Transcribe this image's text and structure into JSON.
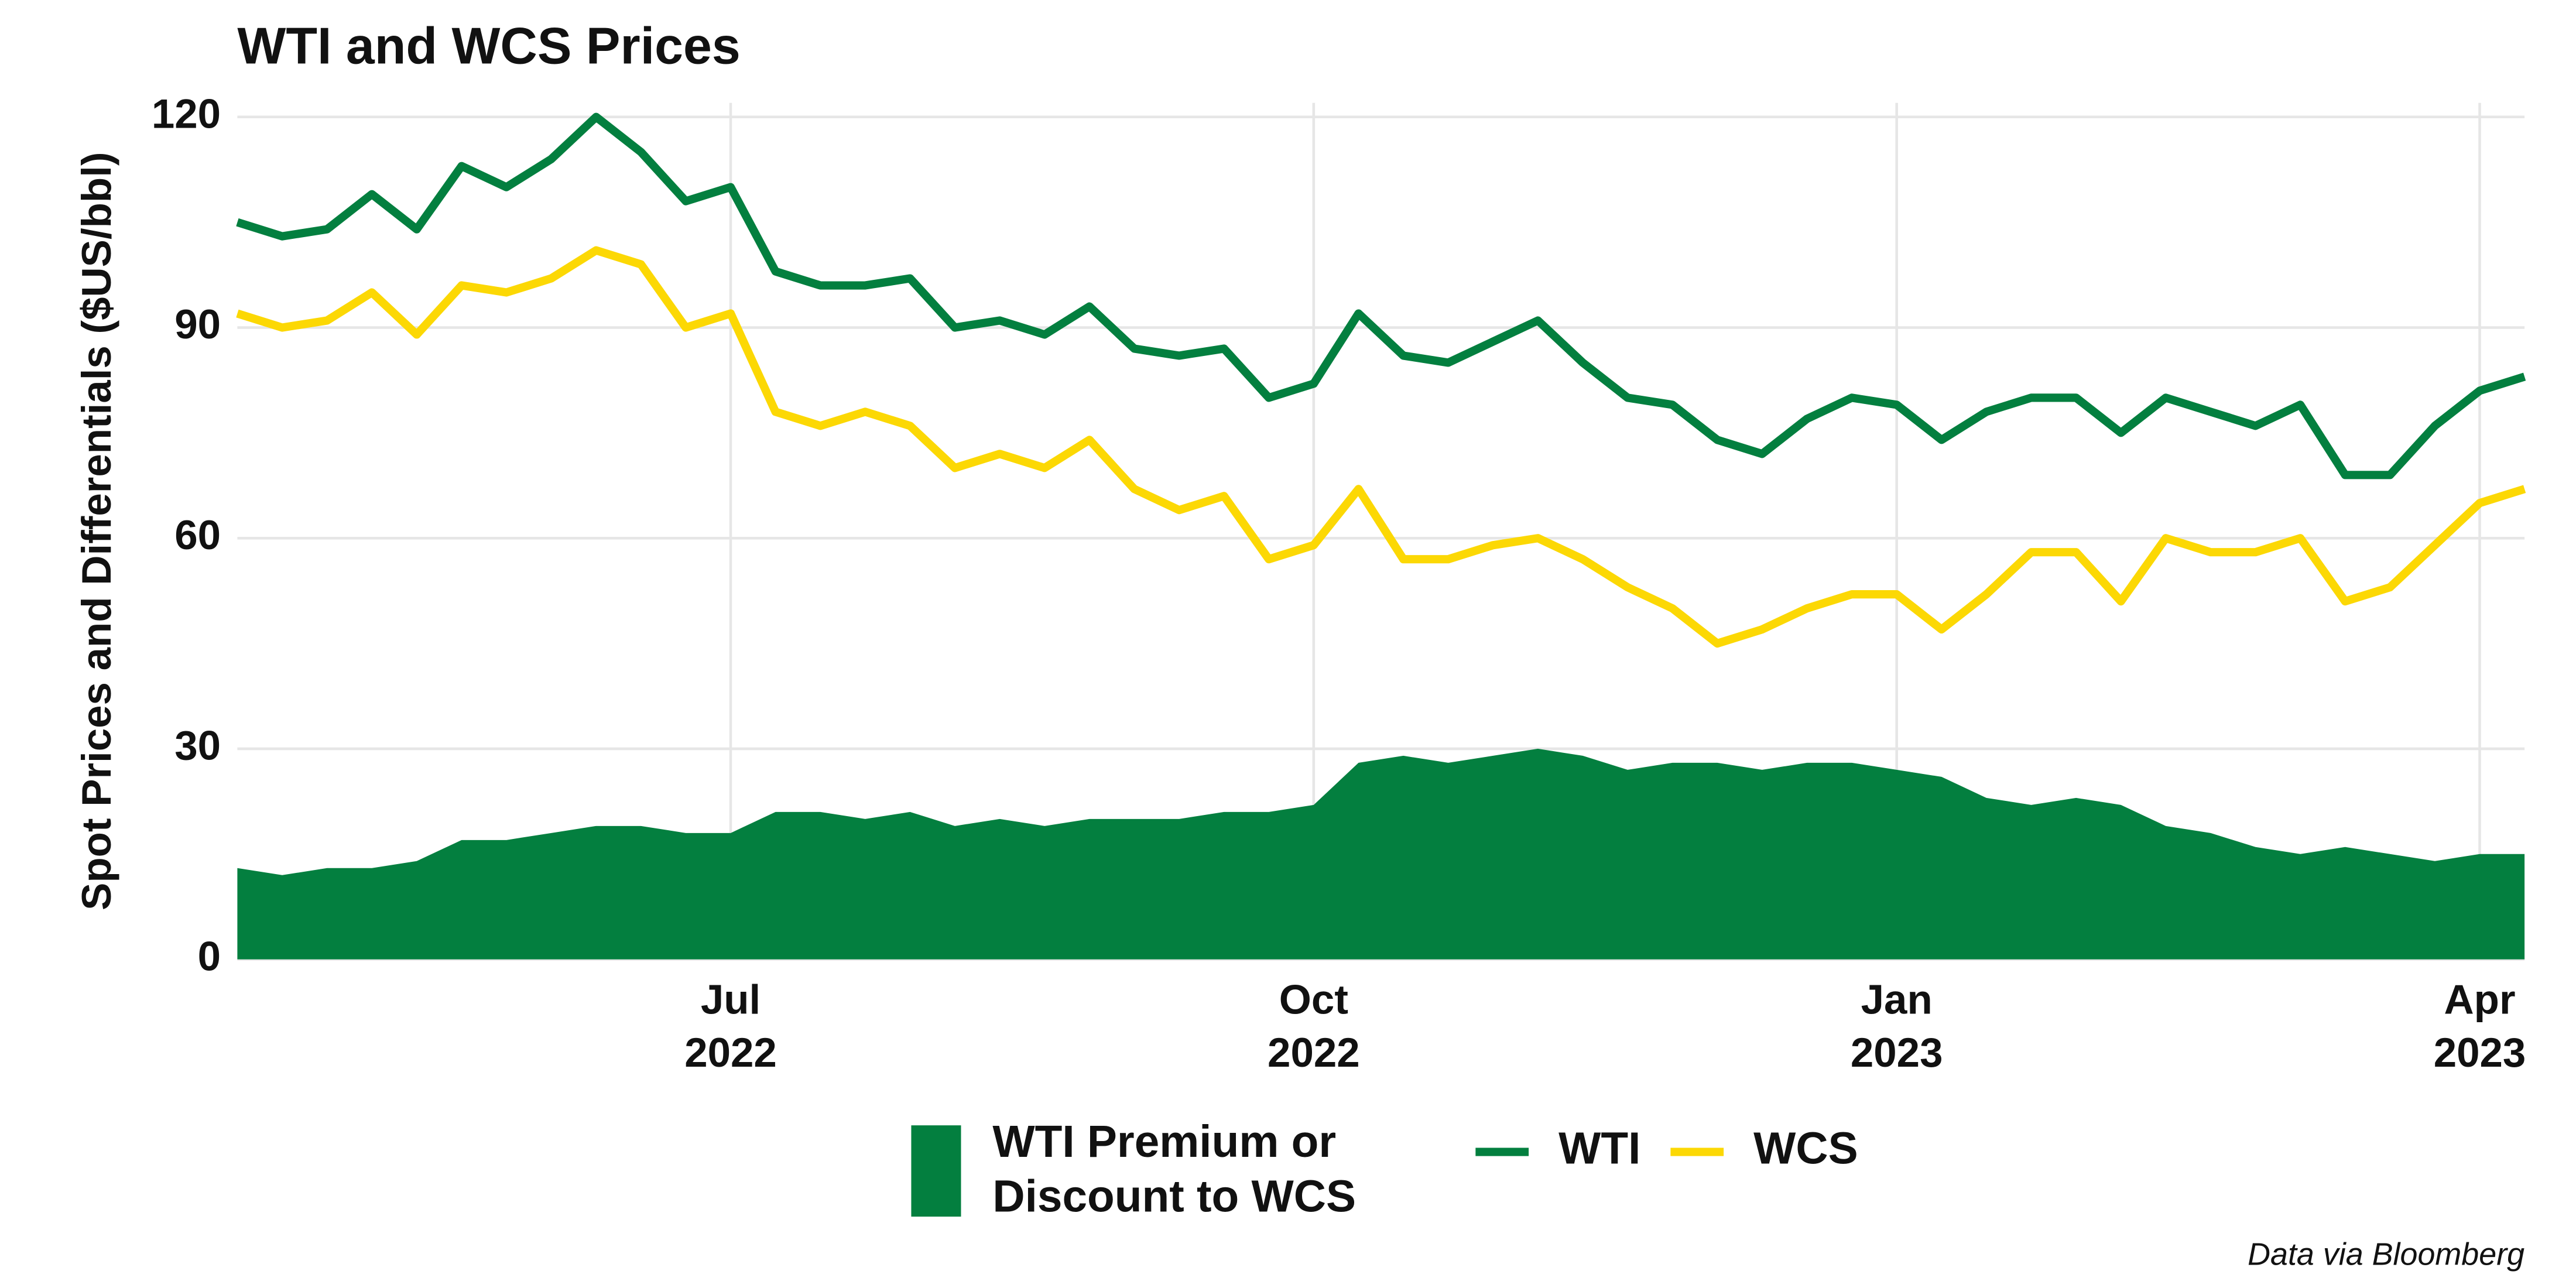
{
  "chart_data": {
    "type": "line",
    "title": "WTI and WCS Prices",
    "y_label": "Spot Prices and Differentials ($US/bbl)",
    "caption": "Data via Bloomberg",
    "categories": [
      null,
      null,
      null,
      null,
      null,
      null,
      null,
      null,
      null,
      null,
      null,
      "Jul 2022",
      null,
      null,
      null,
      null,
      null,
      null,
      null,
      null,
      null,
      null,
      null,
      null,
      "Oct 2022",
      null,
      null,
      null,
      null,
      null,
      null,
      null,
      null,
      null,
      null,
      null,
      null,
      "Jan 2023",
      null,
      null,
      null,
      null,
      null,
      null,
      null,
      null,
      null,
      null,
      null,
      null,
      "Apr 2023",
      null
    ],
    "ylim": [
      0,
      122
    ],
    "yticks": [
      0,
      30,
      60,
      90,
      120
    ],
    "grid": true,
    "series": [
      {
        "name": "WTI Premium or Discount to WCS",
        "type": "area",
        "color": "#037f3f",
        "values": [
          13,
          12,
          13,
          13,
          14,
          17,
          17,
          18,
          19,
          19,
          18,
          18,
          21,
          21,
          20,
          21,
          19,
          20,
          19,
          20,
          20,
          20,
          21,
          21,
          22,
          28,
          29,
          28,
          29,
          30,
          29,
          27,
          28,
          28,
          27,
          28,
          28,
          27,
          26,
          23,
          22,
          23,
          22,
          19,
          18,
          16,
          15,
          16,
          15,
          14,
          15,
          15
        ]
      },
      {
        "name": "WTI",
        "type": "line",
        "color": "#037f3f",
        "values": [
          105,
          103,
          104,
          109,
          104,
          113,
          110,
          114,
          120,
          115,
          108,
          110,
          98,
          96,
          96,
          97,
          90,
          91,
          89,
          93,
          87,
          86,
          87,
          80,
          82,
          92,
          86,
          85,
          88,
          91,
          85,
          80,
          79,
          74,
          72,
          77,
          80,
          79,
          74,
          78,
          80,
          80,
          75,
          80,
          78,
          76,
          79,
          69,
          69,
          76,
          81,
          83
        ]
      },
      {
        "name": "WCS",
        "type": "line",
        "color": "#fcd804",
        "values": [
          92,
          90,
          91,
          95,
          89,
          96,
          95,
          97,
          101,
          99,
          90,
          92,
          78,
          76,
          78,
          76,
          70,
          72,
          70,
          74,
          67,
          64,
          66,
          57,
          59,
          67,
          57,
          57,
          59,
          60,
          57,
          53,
          50,
          45,
          47,
          50,
          52,
          52,
          47,
          52,
          58,
          58,
          51,
          60,
          58,
          58,
          60,
          51,
          53,
          59,
          65,
          67
        ]
      }
    ]
  }
}
